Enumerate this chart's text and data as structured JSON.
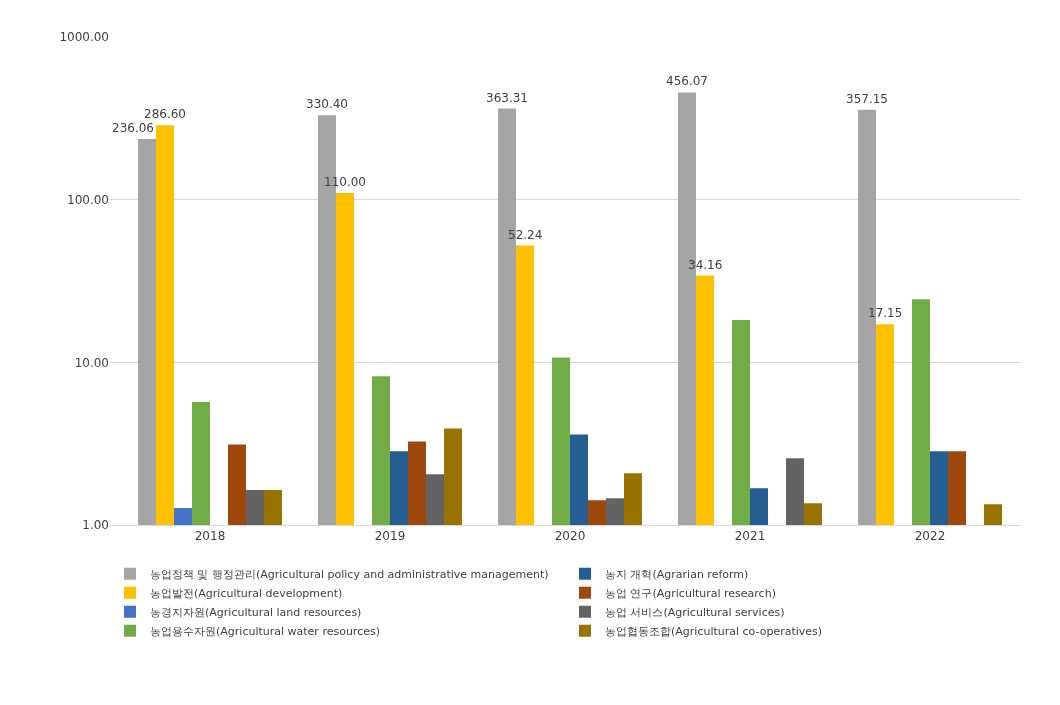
{
  "chart_data": {
    "type": "bar",
    "categories": [
      "2018",
      "2019",
      "2020",
      "2021",
      "2022"
    ],
    "log": true,
    "ylim": [
      1,
      1000
    ],
    "yticks": [
      {
        "value": 1,
        "label": "1.00"
      },
      {
        "value": 10,
        "label": "10.00"
      },
      {
        "value": 100,
        "label": "100.00"
      },
      {
        "value": 1000,
        "label": "1000.00"
      }
    ],
    "grid": "y",
    "legend": "bottom",
    "series": [
      {
        "name": "농업정책 및 행정관리(Agricultural policy and administrative management)",
        "color": "#a5a5a5",
        "values": [
          236.06,
          330.4,
          363.31,
          456.07,
          357.15
        ],
        "value_labels": [
          "236.06",
          "330.40",
          "363.31",
          "456.07",
          "357.15"
        ]
      },
      {
        "name": "농업발전(Agricultural development)",
        "color": "#ffc000",
        "values": [
          286.6,
          110.0,
          52.24,
          34.16,
          17.15
        ],
        "value_labels": [
          "286.60",
          "110.00",
          "52.24",
          "34.16",
          "17.15"
        ]
      },
      {
        "name": "농경지자원(Agricultural land resources)",
        "color": "#4472c4",
        "values": [
          1.27,
          null,
          null,
          null,
          null
        ]
      },
      {
        "name": "농업용수자원(Agricultural water resources)",
        "color": "#70ad47",
        "values": [
          5.7,
          8.2,
          10.7,
          18.2,
          24.4
        ]
      },
      {
        "name": "농지 개혁(Agrarian reform)",
        "color": "#255e91",
        "values": [
          null,
          2.84,
          3.6,
          1.68,
          2.84
        ]
      },
      {
        "name": "농업 연구(Agricultural research)",
        "color": "#9e480e",
        "values": [
          3.13,
          3.26,
          1.42,
          null,
          2.84
        ]
      },
      {
        "name": "농업 서비스(Agricultural services)",
        "color": "#636363",
        "values": [
          1.64,
          2.05,
          1.46,
          2.57,
          null
        ]
      },
      {
        "name": "농업협동조합(Agricultural co-operatives)",
        "color": "#997300",
        "values": [
          1.64,
          3.92,
          2.08,
          1.36,
          1.34
        ]
      }
    ]
  }
}
